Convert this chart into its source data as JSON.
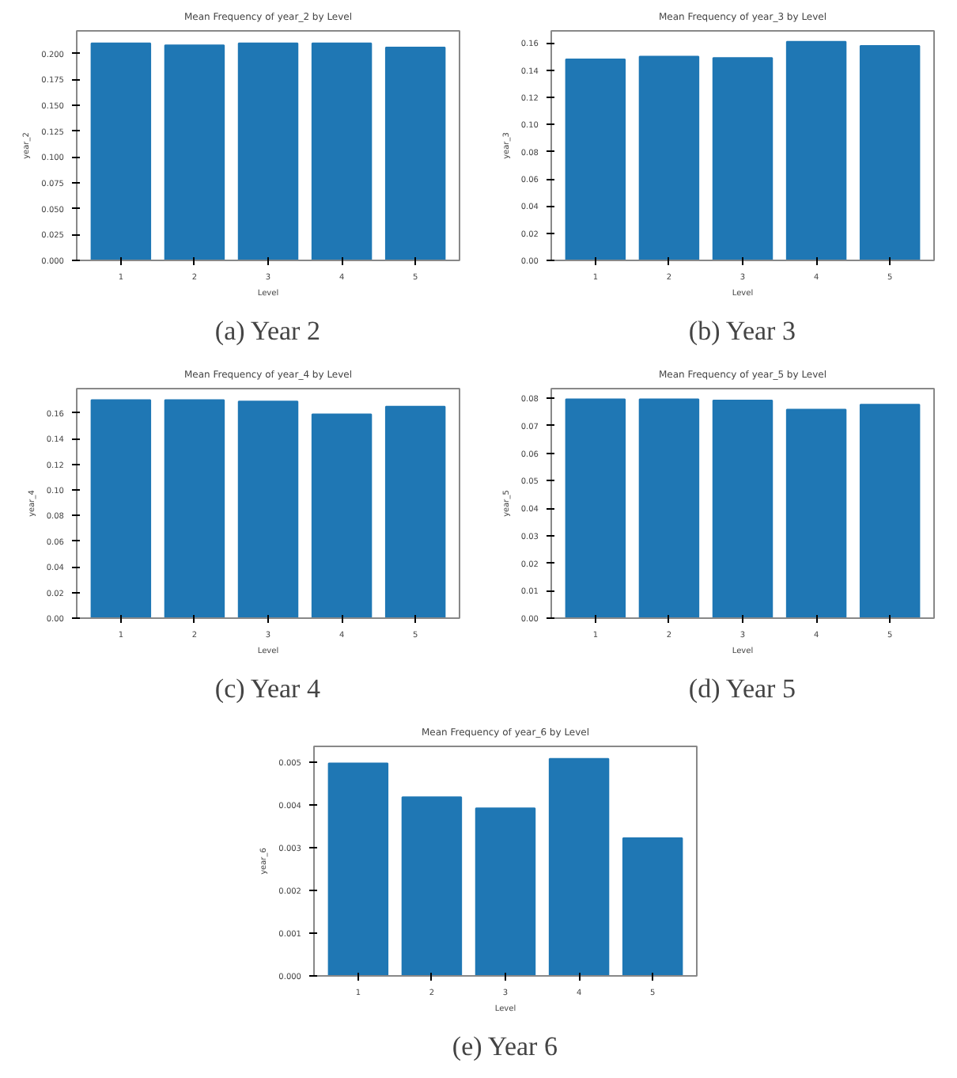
{
  "chart_data": [
    {
      "type": "bar",
      "title": "Mean Frequency of year_2 by Level",
      "xlabel": "Level",
      "ylabel": "year_2",
      "categories": [
        "1",
        "2",
        "3",
        "4",
        "5"
      ],
      "values": [
        0.21,
        0.208,
        0.21,
        0.21,
        0.206
      ],
      "color": "#1f77b4",
      "ylim": [
        0,
        0.222
      ],
      "yticks": [
        {
          "value": 0,
          "label": "0.000"
        },
        {
          "value": 0.025,
          "label": "0.025"
        },
        {
          "value": 0.05,
          "label": "0.050"
        },
        {
          "value": 0.075,
          "label": "0.075"
        },
        {
          "value": 0.1,
          "label": "0.100"
        },
        {
          "value": 0.125,
          "label": "0.125"
        },
        {
          "value": 0.15,
          "label": "0.150"
        },
        {
          "value": 0.175,
          "label": "0.175"
        },
        {
          "value": 0.2,
          "label": "0.200"
        }
      ],
      "annotations": [
        "(a) Year 2"
      ]
    },
    {
      "type": "bar",
      "title": "Mean Frequency of year_3 by Level",
      "xlabel": "Level",
      "ylabel": "year_3",
      "categories": [
        "1",
        "2",
        "3",
        "4",
        "5"
      ],
      "values": [
        0.148,
        0.15,
        0.149,
        0.161,
        0.158
      ],
      "color": "#1f77b4",
      "ylim": [
        0,
        0.169
      ],
      "yticks": [
        {
          "value": 0,
          "label": "0.00"
        },
        {
          "value": 0.02,
          "label": "0.02"
        },
        {
          "value": 0.04,
          "label": "0.04"
        },
        {
          "value": 0.06,
          "label": "0.06"
        },
        {
          "value": 0.08,
          "label": "0.08"
        },
        {
          "value": 0.1,
          "label": "0.10"
        },
        {
          "value": 0.12,
          "label": "0.12"
        },
        {
          "value": 0.14,
          "label": "0.14"
        },
        {
          "value": 0.16,
          "label": "0.16"
        }
      ],
      "annotations": [
        "(b) Year 3"
      ]
    },
    {
      "type": "bar",
      "title": "Mean Frequency of year_4 by Level",
      "xlabel": "Level",
      "ylabel": "year_4",
      "categories": [
        "1",
        "2",
        "3",
        "4",
        "5"
      ],
      "values": [
        0.17,
        0.17,
        0.169,
        0.159,
        0.165
      ],
      "color": "#1f77b4",
      "ylim": [
        0,
        0.179
      ],
      "yticks": [
        {
          "value": 0,
          "label": "0.00"
        },
        {
          "value": 0.02,
          "label": "0.02"
        },
        {
          "value": 0.04,
          "label": "0.04"
        },
        {
          "value": 0.06,
          "label": "0.06"
        },
        {
          "value": 0.08,
          "label": "0.08"
        },
        {
          "value": 0.1,
          "label": "0.10"
        },
        {
          "value": 0.12,
          "label": "0.12"
        },
        {
          "value": 0.14,
          "label": "0.14"
        },
        {
          "value": 0.16,
          "label": "0.16"
        }
      ],
      "annotations": [
        "(c) Year 4"
      ]
    },
    {
      "type": "bar",
      "title": "Mean Frequency of year_5 by Level",
      "xlabel": "Level",
      "ylabel": "year_5",
      "categories": [
        "1",
        "2",
        "3",
        "4",
        "5"
      ],
      "values": [
        0.0796,
        0.0796,
        0.0792,
        0.0759,
        0.0777
      ],
      "color": "#1f77b4",
      "ylim": [
        0,
        0.0835
      ],
      "yticks": [
        {
          "value": 0,
          "label": "0.00"
        },
        {
          "value": 0.01,
          "label": "0.01"
        },
        {
          "value": 0.02,
          "label": "0.02"
        },
        {
          "value": 0.03,
          "label": "0.03"
        },
        {
          "value": 0.04,
          "label": "0.04"
        },
        {
          "value": 0.05,
          "label": "0.05"
        },
        {
          "value": 0.06,
          "label": "0.06"
        },
        {
          "value": 0.07,
          "label": "0.07"
        },
        {
          "value": 0.08,
          "label": "0.08"
        }
      ],
      "annotations": [
        "(d) Year 5"
      ]
    },
    {
      "type": "bar",
      "title": "Mean Frequency of year_6 by Level",
      "xlabel": "Level",
      "ylabel": "year_6",
      "categories": [
        "1",
        "2",
        "3",
        "4",
        "5"
      ],
      "values": [
        0.00498,
        0.00419,
        0.00393,
        0.00509,
        0.00323
      ],
      "color": "#1f77b4",
      "ylim": [
        0,
        0.00538
      ],
      "yticks": [
        {
          "value": 0,
          "label": "0.000"
        },
        {
          "value": 0.001,
          "label": "0.001"
        },
        {
          "value": 0.002,
          "label": "0.002"
        },
        {
          "value": 0.003,
          "label": "0.003"
        },
        {
          "value": 0.004,
          "label": "0.004"
        },
        {
          "value": 0.005,
          "label": "0.005"
        }
      ],
      "annotations": [
        "(e) Year 6"
      ]
    }
  ]
}
